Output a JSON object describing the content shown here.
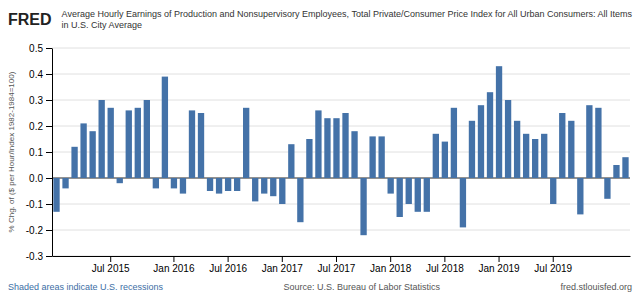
{
  "chart_data": {
    "type": "bar",
    "title": "FRED",
    "subtitle": "Average Hourly Earnings of Production and Nonsupervisory Employees, Total Private/Consumer Price Index for All Urban Consumers: All Items in U.S. City Average",
    "y_label": "% Chg. of ($ per Hour/Index 1982-1984=100)",
    "annotations": [
      "Shaded areas indicate U.S. recessions",
      "Source: U.S. Bureau of Labor Statistics",
      "fred.stlouisfed.org"
    ],
    "categories": [
      null,
      null,
      null,
      null,
      null,
      null,
      "Jul 2015",
      null,
      null,
      null,
      null,
      null,
      null,
      "Jan 2016",
      null,
      null,
      null,
      null,
      null,
      "Jul 2016",
      null,
      null,
      null,
      null,
      null,
      "Jan 2017",
      null,
      null,
      null,
      null,
      null,
      "Jul 2017",
      null,
      null,
      null,
      null,
      null,
      "Jan 2018",
      null,
      null,
      null,
      null,
      null,
      "Jul 2018",
      null,
      null,
      null,
      null,
      null,
      "Jan 2019",
      null,
      null,
      null,
      null,
      null,
      "Jul 2019",
      null,
      null,
      null,
      null,
      null,
      null,
      null,
      null
    ],
    "values": [
      -0.13,
      -0.04,
      0.12,
      0.21,
      0.18,
      0.3,
      0.27,
      -0.02,
      0.26,
      0.27,
      0.3,
      -0.04,
      0.39,
      -0.04,
      -0.06,
      0.26,
      0.25,
      -0.05,
      -0.06,
      -0.05,
      -0.05,
      0.27,
      -0.09,
      -0.06,
      -0.07,
      -0.1,
      0.13,
      -0.17,
      0.15,
      0.26,
      0.23,
      0.23,
      0.25,
      0.18,
      -0.22,
      0.16,
      0.16,
      -0.06,
      -0.15,
      -0.1,
      -0.13,
      -0.13,
      0.17,
      0.14,
      0.27,
      -0.19,
      0.22,
      0.28,
      0.33,
      0.43,
      0.3,
      0.22,
      0.17,
      0.15,
      0.17,
      -0.1,
      0.25,
      0.22,
      -0.14,
      0.28,
      0.27,
      -0.08,
      0.05,
      0.08
    ],
    "color": "#4472a8",
    "ylim": [
      -0.3,
      0.5
    ],
    "yticks": [
      -0.3,
      -0.2,
      -0.1,
      {
        "value": 0.0,
        "label": "0.0"
      },
      0.1,
      0.2,
      0.3,
      0.4,
      0.5
    ],
    "grid": true
  }
}
